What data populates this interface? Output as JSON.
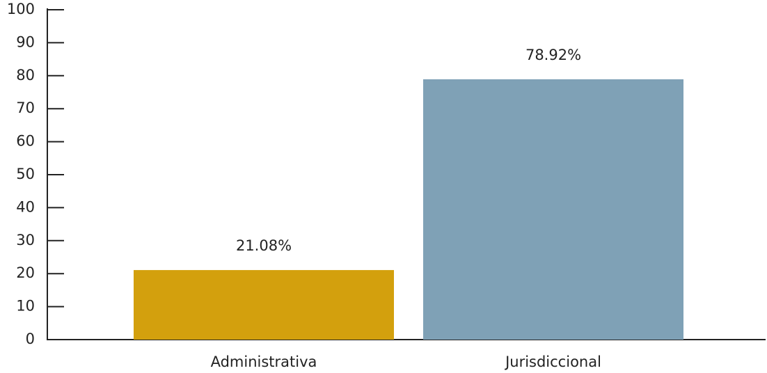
{
  "chart_data": {
    "type": "bar",
    "categories": [
      "Administrativa",
      "Jurisdiccional"
    ],
    "values": [
      21.08,
      78.92
    ],
    "value_labels": [
      "21.08%",
      "78.92%"
    ],
    "colors": [
      "#d3a00d",
      "#7fa1b6"
    ],
    "ylim": [
      0,
      100
    ],
    "yticks": [
      0,
      10,
      20,
      30,
      40,
      50,
      60,
      70,
      80,
      90,
      100
    ]
  }
}
